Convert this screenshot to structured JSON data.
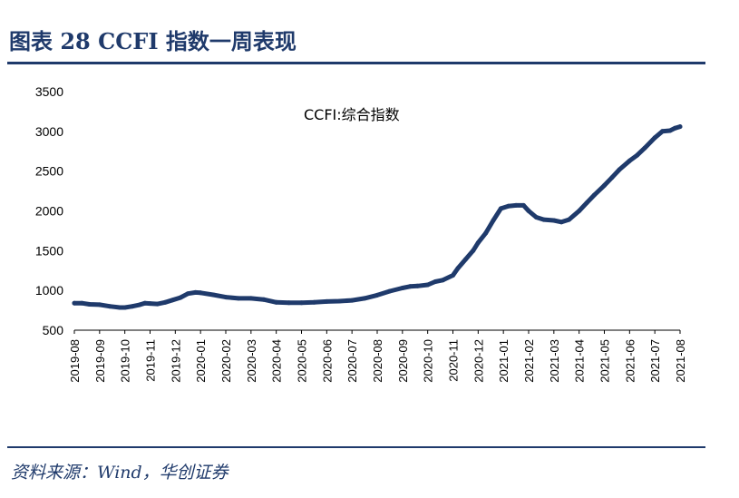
{
  "header": {
    "title": "图表 28 CCFI 指数一周表现"
  },
  "footer": {
    "source": "资料来源：Wind，华创证券"
  },
  "chart_data": {
    "type": "line",
    "title": "",
    "xlabel": "",
    "ylabel": "",
    "ylim": [
      500,
      3500
    ],
    "yticks": [
      500,
      1000,
      1500,
      2000,
      2500,
      3000,
      3500
    ],
    "xticks": [
      "2019-08",
      "2019-09",
      "2019-10",
      "2019-11",
      "2019-12",
      "2020-01",
      "2020-02",
      "2020-03",
      "2020-04",
      "2020-05",
      "2020-06",
      "2020-07",
      "2020-08",
      "2020-09",
      "2020-10",
      "2020-11",
      "2020-12",
      "2021-01",
      "2021-02",
      "2021-03",
      "2021-04",
      "2021-05",
      "2021-06",
      "2021-07",
      "2021-08"
    ],
    "grid": false,
    "line_color": "#1f3a6b",
    "series": [
      {
        "name": "CCFI:综合指数",
        "x": [
          0,
          0.3,
          0.6,
          1.0,
          1.4,
          1.8,
          2.0,
          2.3,
          2.6,
          2.8,
          3.0,
          3.3,
          3.6,
          3.9,
          4.2,
          4.5,
          4.8,
          5.0,
          5.5,
          6.0,
          6.5,
          7.0,
          7.5,
          8.0,
          8.5,
          9.0,
          9.5,
          10.0,
          10.5,
          11.0,
          11.5,
          12.0,
          12.5,
          13.0,
          13.3,
          13.6,
          14.0,
          14.3,
          14.6,
          15.0,
          15.2,
          15.5,
          15.8,
          16.0,
          16.3,
          16.6,
          16.9,
          17.2,
          17.5,
          17.8,
          18.0,
          18.3,
          18.6,
          19.0,
          19.3,
          19.6,
          20.0,
          20.3,
          20.6,
          21.0,
          21.3,
          21.6,
          22.0,
          22.3,
          22.6,
          23.0,
          23.3,
          23.6,
          23.8,
          24.0
        ],
        "values": [
          840,
          840,
          825,
          820,
          800,
          785,
          785,
          800,
          820,
          840,
          835,
          830,
          850,
          880,
          910,
          960,
          975,
          970,
          945,
          915,
          900,
          900,
          885,
          850,
          845,
          845,
          850,
          860,
          865,
          875,
          900,
          940,
          990,
          1030,
          1050,
          1055,
          1070,
          1110,
          1130,
          1190,
          1280,
          1390,
          1500,
          1600,
          1720,
          1880,
          2030,
          2060,
          2070,
          2070,
          2000,
          1920,
          1890,
          1880,
          1860,
          1890,
          2000,
          2100,
          2200,
          2320,
          2420,
          2520,
          2630,
          2700,
          2790,
          2920,
          3000,
          3010,
          3040,
          3060
        ]
      }
    ]
  }
}
